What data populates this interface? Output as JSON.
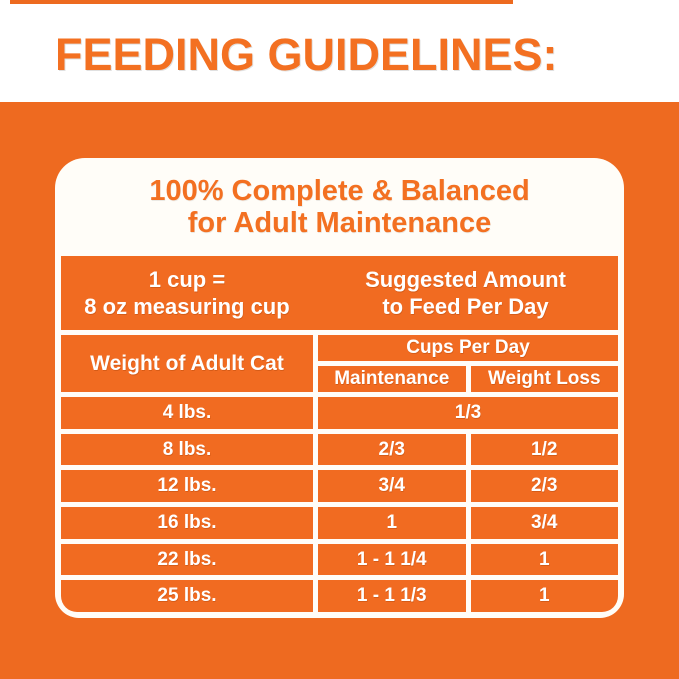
{
  "title": "FEEDING GUIDELINES:",
  "colors": {
    "background_orange": "#EE6A20",
    "cell_orange": "#F16B21",
    "heading_orange": "#F37021",
    "grid_white": "#FFFDF8",
    "cell_text_white": "#FFFFFF"
  },
  "card": {
    "heading_line1": "100% Complete & Balanced",
    "heading_line2": "for Adult Maintenance",
    "cup_note_line1": "1 cup =",
    "cup_note_line2": "8 oz measuring cup",
    "suggested_line1": "Suggested Amount",
    "suggested_line2": "to Feed Per Day"
  },
  "table": {
    "weight_header": "Weight of Adult Cat",
    "cups_header": "Cups Per Day",
    "maintenance_header": "Maintenance",
    "weight_loss_header": "Weight Loss",
    "rows": [
      {
        "weight": "4 lbs.",
        "maintenance": "1/3",
        "weight_loss": "",
        "merged": true
      },
      {
        "weight": "8 lbs.",
        "maintenance": "2/3",
        "weight_loss": "1/2",
        "merged": false
      },
      {
        "weight": "12 lbs.",
        "maintenance": "3/4",
        "weight_loss": "2/3",
        "merged": false
      },
      {
        "weight": "16 lbs.",
        "maintenance": "1",
        "weight_loss": "3/4",
        "merged": false
      },
      {
        "weight": "22 lbs.",
        "maintenance": "1 - 1 1/4",
        "weight_loss": "1",
        "merged": false
      },
      {
        "weight": "25 lbs.",
        "maintenance": "1 - 1 1/3",
        "weight_loss": "1",
        "merged": false
      }
    ]
  },
  "chart_data": {
    "type": "table",
    "title": "FEEDING GUIDELINES: 100% Complete & Balanced for Adult Maintenance",
    "columns": [
      "Weight of Adult Cat",
      "Cups Per Day — Maintenance",
      "Cups Per Day — Weight Loss"
    ],
    "rows": [
      [
        "4 lbs.",
        "1/3",
        "1/3"
      ],
      [
        "8 lbs.",
        "2/3",
        "1/2"
      ],
      [
        "12 lbs.",
        "3/4",
        "2/3"
      ],
      [
        "16 lbs.",
        "1",
        "3/4"
      ],
      [
        "22 lbs.",
        "1 - 1 1/4",
        "1"
      ],
      [
        "25 lbs.",
        "1 - 1 1/3",
        "1"
      ]
    ]
  }
}
